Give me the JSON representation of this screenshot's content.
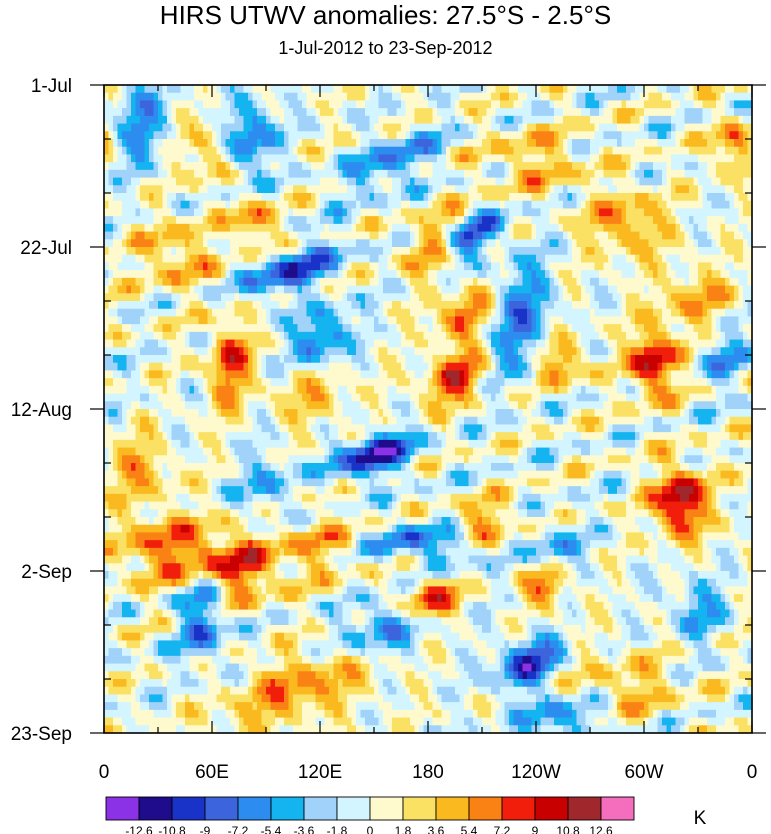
{
  "chart_data": {
    "type": "heatmap",
    "title": "HIRS UTWV anomalies: 27.5°S - 2.5°S",
    "subtitle": "1-Jul-2012 to 23-Sep-2012",
    "x_tick_labels": [
      "0",
      "60E",
      "120E",
      "180",
      "120W",
      "60W",
      "0"
    ],
    "x_ticks_deg": [
      0,
      60,
      120,
      180,
      240,
      300,
      360
    ],
    "y_tick_labels": [
      "1-Jul",
      "22-Jul",
      "12-Aug",
      "2-Sep",
      "23-Sep"
    ],
    "y_ticks_day": [
      0,
      21,
      42,
      63,
      84
    ],
    "xlim": [
      0,
      360
    ],
    "ylim_days": [
      0,
      84
    ],
    "colorbar_unit": "K",
    "levels": [
      -12.6,
      -10.8,
      -9,
      -7.2,
      -5.4,
      -3.6,
      -1.8,
      0,
      1.8,
      3.6,
      5.4,
      7.2,
      9,
      10.8,
      12.6
    ],
    "level_labels": [
      "-12.6",
      "-10.8",
      "-9",
      "-7.2",
      "-5.4",
      "-3.6",
      "-1.8",
      "0",
      "1.8",
      "3.6",
      "5.4",
      "7.2",
      "9",
      "10.8",
      "12.6"
    ],
    "colors": [
      "#8c32e6",
      "#1e0c8c",
      "#1932c8",
      "#3c64dc",
      "#2d8cf0",
      "#14b4f0",
      "#a0d2fa",
      "#d2f5ff",
      "#fffacd",
      "#fae164",
      "#fab91e",
      "#fa8214",
      "#f01e0a",
      "#c80000",
      "#a0282d",
      "#f56ebe"
    ],
    "features": [
      {
        "lon": 200,
        "day": 20,
        "amp": -12,
        "slon": 14,
        "sday": 1.6,
        "tilt": 0.5
      },
      {
        "lon": 150,
        "day": 48,
        "amp": -12,
        "slon": 15,
        "sday": 1.8,
        "tilt": 0.3
      },
      {
        "lon": 235,
        "day": 75,
        "amp": -11,
        "slon": 12,
        "sday": 2.0,
        "tilt": 0.4
      },
      {
        "lon": 105,
        "day": 24,
        "amp": -9,
        "slon": 18,
        "sday": 2.0,
        "tilt": 0.4
      },
      {
        "lon": 80,
        "day": 7,
        "amp": -8,
        "slon": 10,
        "sday": 3.5,
        "tilt": 0.3
      },
      {
        "lon": 120,
        "day": 33,
        "amp": -8,
        "slon": 12,
        "sday": 2.5,
        "tilt": 0.5
      },
      {
        "lon": 160,
        "day": 70,
        "amp": -8,
        "slon": 20,
        "sday": 2.5,
        "tilt": 0.4
      },
      {
        "lon": 55,
        "day": 69,
        "amp": -8,
        "slon": 9,
        "sday": 4.0,
        "tilt": 0.3
      },
      {
        "lon": 165,
        "day": 59,
        "amp": -7,
        "slon": 12,
        "sday": 1.5,
        "tilt": 0.3
      },
      {
        "lon": 160,
        "day": 10,
        "amp": -7,
        "slon": 18,
        "sday": 2.0,
        "tilt": 0.5
      },
      {
        "lon": 230,
        "day": 30,
        "amp": -7,
        "slon": 12,
        "sday": 5.0,
        "tilt": 0.6
      },
      {
        "lon": 255,
        "day": 82,
        "amp": -7,
        "slon": 16,
        "sday": 1.8,
        "tilt": 0.2
      },
      {
        "lon": 20,
        "day": 5,
        "amp": -6,
        "slon": 10,
        "sday": 4.0,
        "tilt": 0.2
      },
      {
        "lon": 195,
        "day": 60,
        "amp": -6,
        "slon": 12,
        "sday": 2.0,
        "tilt": 0.3
      },
      {
        "lon": 90,
        "day": 52,
        "amp": -5,
        "slon": 10,
        "sday": 3.0,
        "tilt": 0.2
      },
      {
        "lon": 345,
        "day": 35,
        "amp": -5,
        "slon": 10,
        "sday": 3.0,
        "tilt": 0.0
      },
      {
        "lon": 250,
        "day": 60,
        "amp": -5,
        "slon": 12,
        "sday": 2.0,
        "tilt": 0.2
      },
      {
        "lon": 330,
        "day": 68,
        "amp": -5,
        "slon": 10,
        "sday": 3.0,
        "tilt": 0.0
      },
      {
        "lon": 185,
        "day": 21,
        "amp": 9,
        "slon": 12,
        "sday": 2.5,
        "tilt": 0.5
      },
      {
        "lon": 200,
        "day": 30,
        "amp": 8,
        "slon": 12,
        "sday": 2.0,
        "tilt": 0.5
      },
      {
        "lon": 195,
        "day": 38,
        "amp": 10,
        "slon": 12,
        "sday": 2.0,
        "tilt": 0.5
      },
      {
        "lon": 305,
        "day": 36,
        "amp": 11,
        "slon": 9,
        "sday": 3.0,
        "tilt": 0.0
      },
      {
        "lon": 320,
        "day": 54,
        "amp": 12.5,
        "slon": 10,
        "sday": 3.0,
        "tilt": 0.0
      },
      {
        "lon": 180,
        "day": 67,
        "amp": 12,
        "slon": 12,
        "sday": 2.0,
        "tilt": 0.3
      },
      {
        "lon": 70,
        "day": 36,
        "amp": 8,
        "slon": 8,
        "sday": 4.0,
        "tilt": 0.2
      },
      {
        "lon": 255,
        "day": 36,
        "amp": 7,
        "slon": 8,
        "sday": 2.0,
        "tilt": 0.2
      },
      {
        "lon": 245,
        "day": 65,
        "amp": 7,
        "slon": 8,
        "sday": 2.0,
        "tilt": 0.0
      },
      {
        "lon": 350,
        "day": 8,
        "amp": 7,
        "slon": 8,
        "sday": 2.5,
        "tilt": 0.0
      },
      {
        "lon": 85,
        "day": 18,
        "amp": 7,
        "slon": 8,
        "sday": 2.0,
        "tilt": 0.0
      },
      {
        "lon": 210,
        "day": 57,
        "amp": 7,
        "slon": 12,
        "sday": 2.0,
        "tilt": 0.2
      },
      {
        "lon": 80,
        "day": 63,
        "amp": 6,
        "slon": 15,
        "sday": 3.0,
        "tilt": 0.3
      },
      {
        "lon": 60,
        "day": 61,
        "amp": 5,
        "slon": 15,
        "sday": 3.0,
        "tilt": 0.0
      },
      {
        "lon": 30,
        "day": 60,
        "amp": 6,
        "slon": 18,
        "sday": 3.0,
        "tilt": 0.0
      },
      {
        "lon": 110,
        "day": 78,
        "amp": 6,
        "slon": 30,
        "sday": 3.0,
        "tilt": 0.4
      },
      {
        "lon": 290,
        "day": 18,
        "amp": 6,
        "slon": 15,
        "sday": 3.0,
        "tilt": 0.0
      },
      {
        "lon": 330,
        "day": 28,
        "amp": 5,
        "slon": 15,
        "sday": 3.0,
        "tilt": 0.0
      },
      {
        "lon": 40,
        "day": 22,
        "amp": 5,
        "slon": 15,
        "sday": 3.0,
        "tilt": 0.0
      },
      {
        "lon": 115,
        "day": 40,
        "amp": 4,
        "slon": 15,
        "sday": 3.0,
        "tilt": 0.0
      },
      {
        "lon": 20,
        "day": 50,
        "amp": 5,
        "slon": 12,
        "sday": 3.0,
        "tilt": 0.0
      },
      {
        "lon": 290,
        "day": 78,
        "amp": 4,
        "slon": 20,
        "sday": 3.0,
        "tilt": 0.0
      },
      {
        "lon": 60,
        "day": 9,
        "amp": 5,
        "slon": 10,
        "sday": 3.0,
        "tilt": 0.0
      },
      {
        "lon": 240,
        "day": 10,
        "amp": 4,
        "slon": 20,
        "sday": 3.0,
        "tilt": 0.0
      },
      {
        "lon": 120,
        "day": 60,
        "amp": 4,
        "slon": 15,
        "sday": 3.0,
        "tilt": 0.0
      }
    ]
  }
}
